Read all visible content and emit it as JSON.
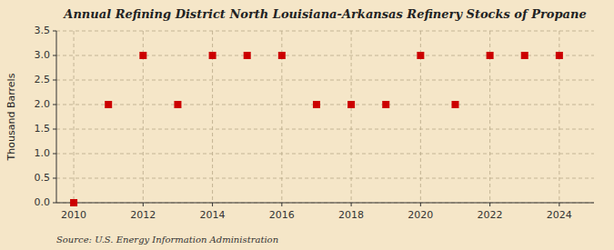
{
  "chart_data": {
    "type": "scatter",
    "title": "Annual Refining District North Louisiana-Arkansas Refinery Stocks of Propane",
    "y_label": "Thousand Barrels",
    "source": "Source: U.S. Energy Information Administration",
    "x": [
      2010,
      2011,
      2012,
      2013,
      2014,
      2015,
      2016,
      2017,
      2018,
      2019,
      2020,
      2021,
      2022,
      2023,
      2024
    ],
    "values": [
      0.0,
      2.0,
      3.0,
      2.0,
      3.0,
      3.0,
      3.0,
      2.0,
      2.0,
      2.0,
      3.0,
      2.0,
      3.0,
      3.0,
      3.0
    ],
    "color": "#cc0000",
    "marker": "square",
    "xlim": [
      2009.5,
      2025
    ],
    "ylim": [
      0.0,
      3.5
    ],
    "xticks": [
      2010,
      2012,
      2014,
      2016,
      2018,
      2020,
      2022,
      2024
    ],
    "yticks": [
      {
        "value": 0.0,
        "label": "0.0"
      },
      0.5,
      {
        "value": 1.0,
        "label": "1.0"
      },
      1.5,
      {
        "value": 2.0,
        "label": "2.0"
      },
      2.5,
      {
        "value": 3.0,
        "label": "3.0"
      },
      3.5
    ],
    "grid": true
  }
}
